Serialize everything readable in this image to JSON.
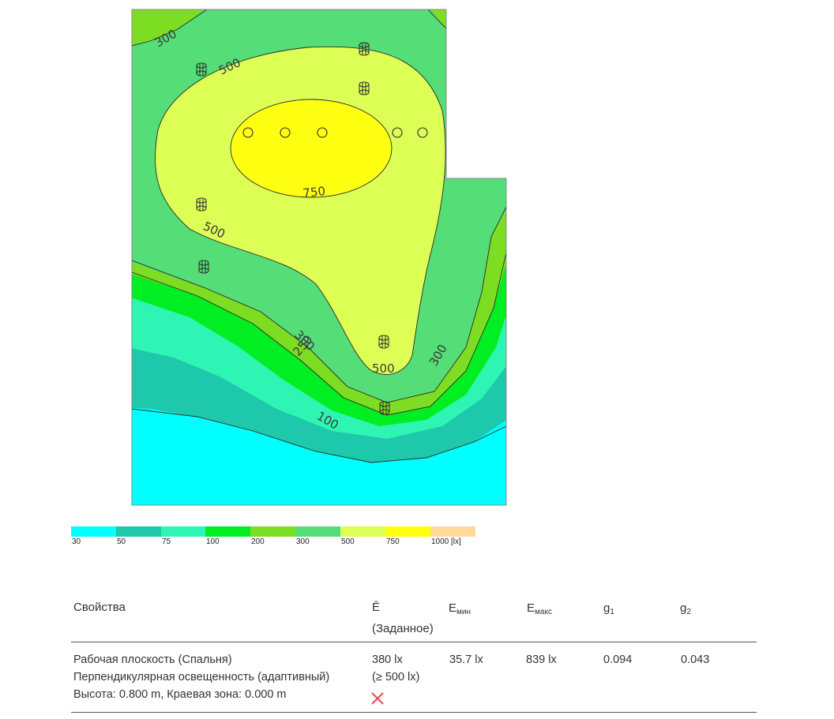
{
  "contour_labels": [
    "300",
    "500",
    "750",
    "500",
    "300",
    "250",
    "500",
    "300",
    "100"
  ],
  "legend": {
    "colors": [
      "#00ffff",
      "#1ec8aa",
      "#2ef5b4",
      "#00ee22",
      "#7ddd22",
      "#55dd77",
      "#ddff55",
      "#ffff11",
      "#ffd89a"
    ],
    "ticks": [
      "30",
      "50",
      "75",
      "100",
      "200",
      "300",
      "500",
      "750",
      "1000 [lx]"
    ]
  },
  "table": {
    "headers": {
      "properties": "Свойства",
      "e_avg_symbol": "Ē",
      "e_avg_note": "(Заданное)",
      "e_min_base": "E",
      "e_min_sub": "мин",
      "e_max_base": "E",
      "e_max_sub": "макс",
      "g1_base": "g",
      "g1_sub": "1",
      "g2_base": "g",
      "g2_sub": "2"
    },
    "row": {
      "line1": "Рабочая плоскость (Спальня)",
      "line2": "Перпендикулярная освещенность (адаптивный)",
      "line3": "Высота: 0.800 m, Краевая зона: 0.000 m",
      "e_avg": "380 lx",
      "e_target": "(≥ 500 lx)",
      "e_min": "35.7 lx",
      "e_max": "839 lx",
      "g1": "0.094",
      "g2": "0.043",
      "status_icon": "cross-icon",
      "status_color": "#e8484f"
    }
  }
}
